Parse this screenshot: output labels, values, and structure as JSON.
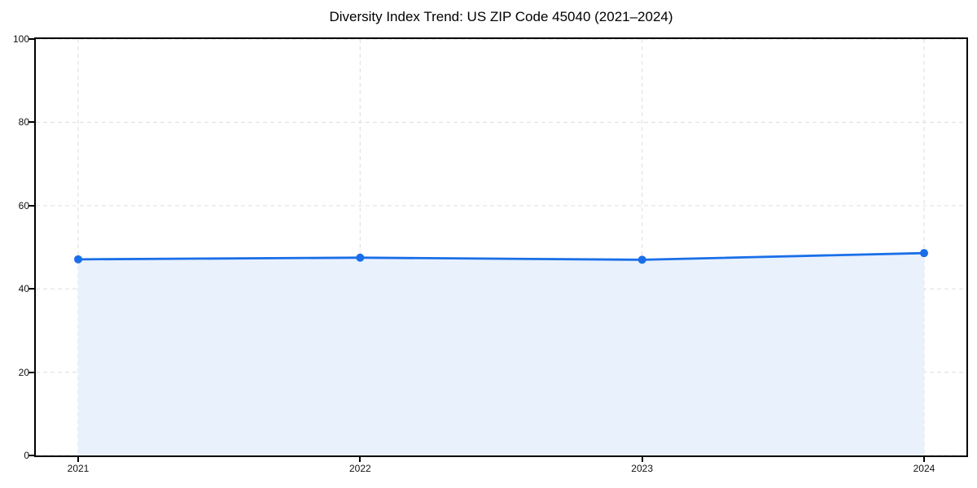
{
  "header": {
    "title": "Diversity Index Trend: US ZIP Code 45040 (2021–2024)"
  },
  "chart_data": {
    "type": "area",
    "title": "Diversity Index Trend: US ZIP Code 45040 (2021–2024)",
    "x": [
      2021,
      2022,
      2023,
      2024
    ],
    "categories": [
      "2021",
      "2022",
      "2023",
      "2024"
    ],
    "series": [
      {
        "name": "Diversity Index",
        "values": [
          47.1,
          47.5,
          47.0,
          48.6
        ]
      }
    ],
    "xlabel": "",
    "ylabel": "",
    "ylim": [
      0,
      100
    ],
    "yticks": [
      0,
      20,
      40,
      60,
      80,
      100
    ],
    "grid": true,
    "grid_style": "dashed",
    "legend_position": "none",
    "marker": "circle",
    "colors": {
      "line": "#1a6fe8",
      "marker": "#1a6fe8",
      "fill": "#e9f1fd",
      "grid": "#e3e3e3",
      "spine": "#000000",
      "tick_text": "#111111",
      "title_text": "#000000"
    }
  }
}
